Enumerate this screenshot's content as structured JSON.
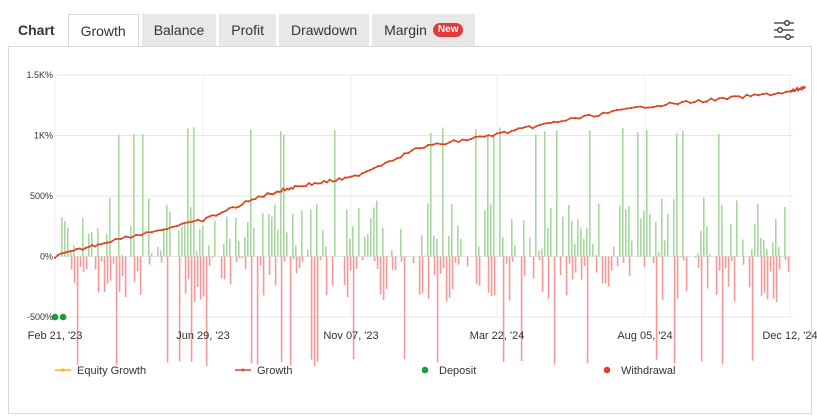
{
  "tabs": [
    {
      "label": "Chart"
    },
    {
      "label": "Growth"
    },
    {
      "label": "Balance"
    },
    {
      "label": "Profit"
    },
    {
      "label": "Drawdown"
    },
    {
      "label": "Margin",
      "badge": "New"
    }
  ],
  "icons": {
    "settings": "sliders-icon"
  },
  "colors": {
    "growth_line": "#d9472b",
    "equity_line": "#f5b800",
    "positive_bar": "#a8d8a0",
    "negative_bar": "#f29a9a",
    "deposit": "#1a9e3a",
    "withdrawal": "#e23b3b"
  },
  "chart_data": {
    "type": "line",
    "y_ticks": [
      "1.5K%",
      "1K%",
      "500%",
      "0%",
      "-500%"
    ],
    "x_ticks": [
      "Feb 21, '23",
      "Jun 29, '23",
      "Nov 07, '23",
      "Mar 22, '24",
      "Aug 05, '24",
      "Dec 12, '24"
    ],
    "ylim": [
      -500,
      1500
    ],
    "series": [
      {
        "name": "Growth",
        "x": [
          "Feb 21, '23",
          "Apr 10, '23",
          "Jun 29, '23",
          "Aug 20, '23",
          "Sep 20, '23",
          "Nov 07, '23",
          "Jan 10, '24",
          "Mar 22, '24",
          "May 20, '24",
          "Aug 05, '24",
          "Oct 10, '24",
          "Dec 12, '24",
          "Dec 25, '24"
        ],
        "values": [
          0,
          130,
          300,
          500,
          580,
          650,
          900,
          1010,
          1120,
          1240,
          1300,
          1360,
          1400
        ]
      },
      {
        "name": "Equity Growth",
        "x": [
          "Feb 21, '23",
          "Dec 25, '24"
        ],
        "values": [
          0,
          1400
        ]
      }
    ],
    "deposits": [
      {
        "x": "Feb 21, '23",
        "value": -500
      },
      {
        "x": "Feb 28, '23",
        "value": -500
      }
    ],
    "legend": [
      "Equity Growth",
      "Growth",
      "Deposit",
      "Withdrawal"
    ],
    "legend_position": "bottom",
    "grid": true
  }
}
